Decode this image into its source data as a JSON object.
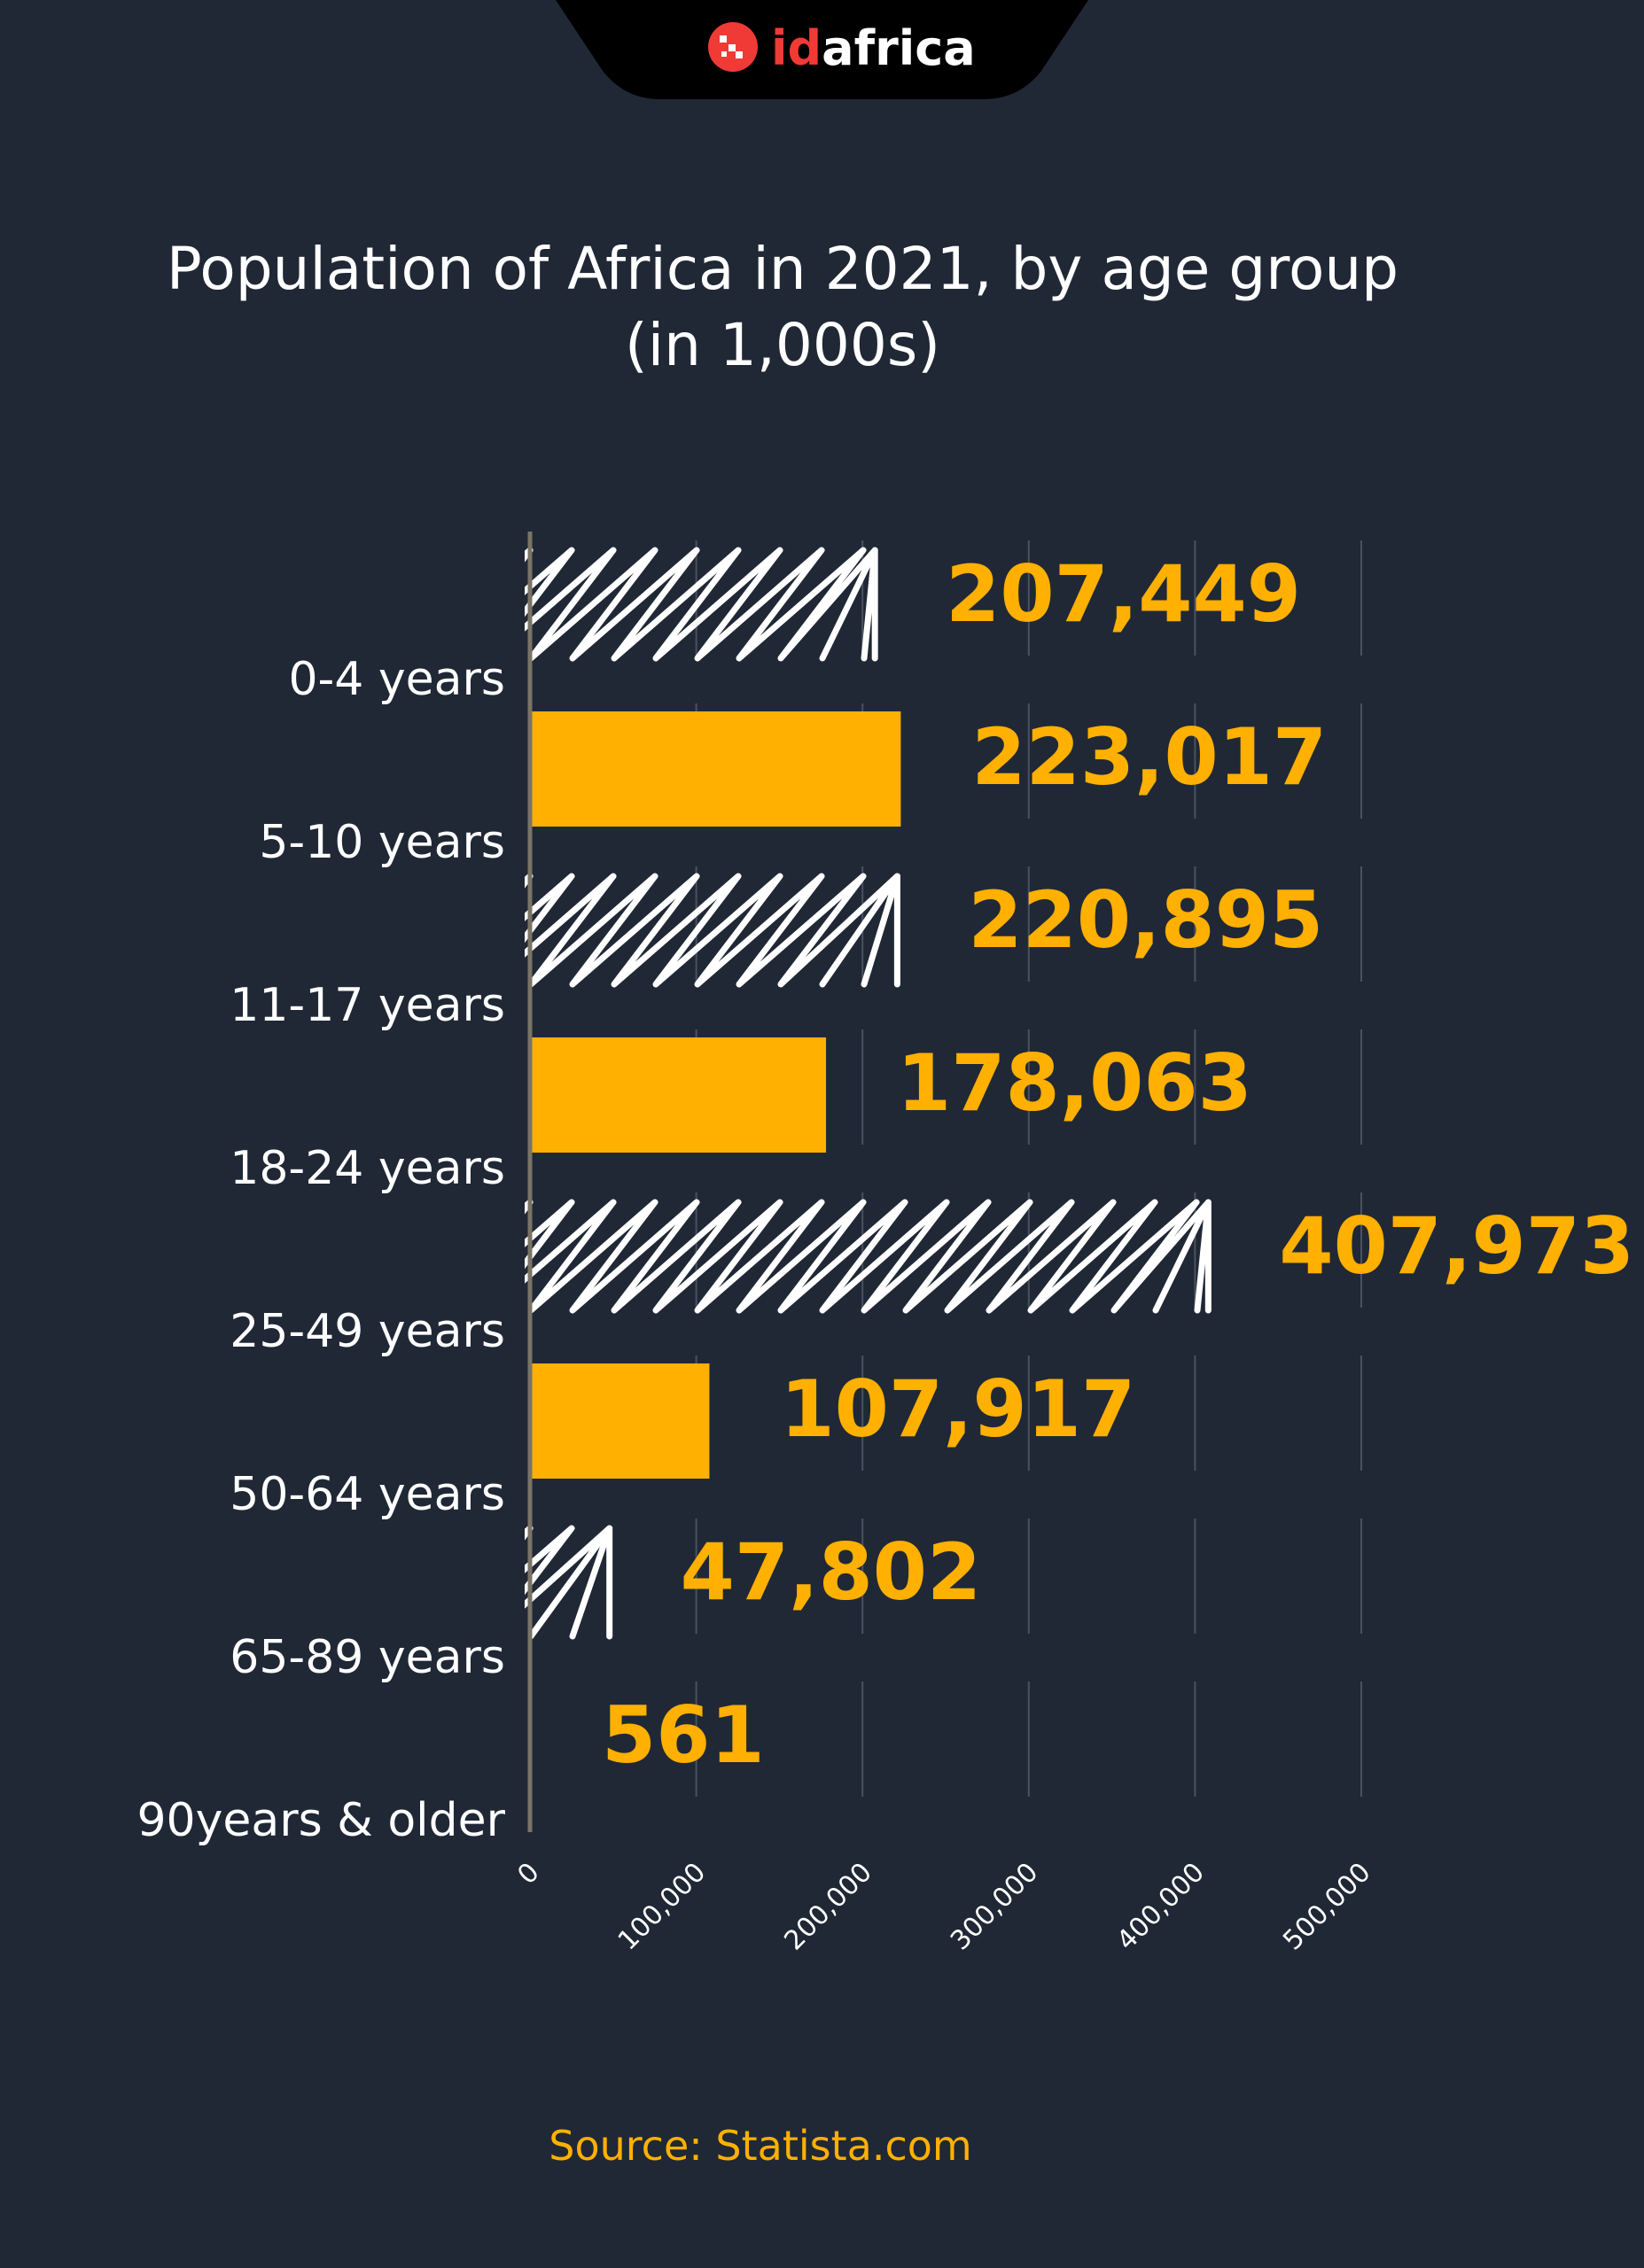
{
  "logo": {
    "text_red": "id",
    "text_white": "africa"
  },
  "colors": {
    "background": "#202836",
    "accent": "#FFB000",
    "logo_red": "#F03A36",
    "bar_hatch": "#ffffff",
    "axis": "#7a7466",
    "grid": "#4a5160"
  },
  "chart_data": {
    "type": "bar",
    "orientation": "horizontal",
    "title": "Population of Africa in 2021, by age group",
    "subtitle": "(in 1,000s)",
    "categories": [
      "0-4 years",
      "5-10 years",
      "11-17 years",
      "18-24 years",
      "25-49 years",
      "50-64 years",
      "65-89 years",
      "90years & older"
    ],
    "values": [
      207449,
      223017,
      220895,
      178063,
      407973,
      107917,
      47802,
      561
    ],
    "value_labels": [
      "207,449",
      "223,017",
      "220,895",
      "178,063",
      "407,973",
      "107,917",
      "47,802",
      "561"
    ],
    "bar_styles": [
      "hatched",
      "solid",
      "hatched",
      "solid",
      "hatched",
      "solid",
      "hatched",
      "solid"
    ],
    "xlim": [
      0,
      500000
    ],
    "xticks": [
      0,
      100000,
      200000,
      300000,
      400000,
      500000
    ],
    "xtick_labels": [
      "0",
      "100,000",
      "200,000",
      "300,000",
      "400,000",
      "500,000"
    ],
    "xlabel": "",
    "ylabel": "",
    "grid": true,
    "legend": "none"
  },
  "source": "Source: Statista.com"
}
